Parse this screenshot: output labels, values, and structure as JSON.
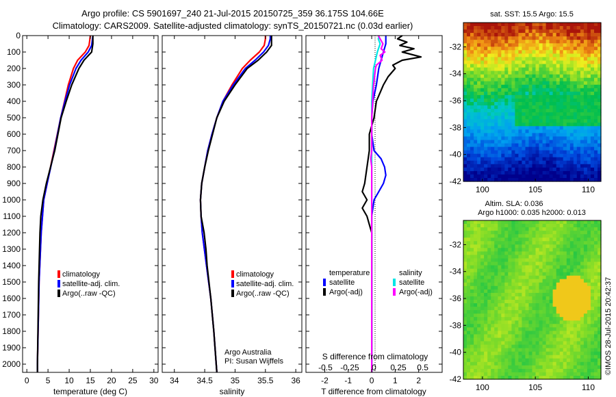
{
  "header": {
    "line1": "Argo profile: CS 5901697_240 21-Jul-2015 20150725_359 36.175S 104.66E",
    "line2": "Climatology: CARS2009. Satellite-adjusted climatology: synTS_20150721.nc (0.03d earlier)"
  },
  "colors": {
    "climatology": "#ff0000",
    "satellite_adj": "#0000ff",
    "argo": "#000000",
    "satellite_salinity": "#00e5e5",
    "argo_salinity": "#ff00ff"
  },
  "chart_data": [
    {
      "type": "line",
      "id": "temperature",
      "xlabel": "temperature (deg C)",
      "xlim": [
        -1,
        31
      ],
      "ylim": [
        2050,
        0
      ],
      "xticks": [
        0,
        5,
        10,
        15,
        20,
        25,
        30
      ],
      "yticks": [
        0,
        100,
        200,
        300,
        400,
        500,
        600,
        700,
        800,
        900,
        1000,
        1100,
        1200,
        1300,
        1400,
        1500,
        1600,
        1700,
        1800,
        1900,
        2000
      ],
      "legend": [
        "climatology",
        "satellite-adj. clim.",
        "Argo(..raw -QC)"
      ],
      "legend_position": "lower-middle",
      "series": [
        {
          "name": "climatology",
          "color": "#ff0000",
          "depth": [
            0,
            20,
            60,
            100,
            150,
            200,
            300,
            400,
            500,
            700,
            900,
            1000,
            1200,
            1500,
            2000,
            2050
          ],
          "values": [
            15.0,
            14.9,
            14.7,
            13.8,
            12.0,
            11.0,
            9.8,
            8.9,
            8.0,
            6.4,
            4.8,
            4.0,
            3.4,
            2.9,
            2.5,
            2.5
          ]
        },
        {
          "name": "satellite-adj. clim.",
          "color": "#0000ff",
          "depth": [
            0,
            20,
            60,
            100,
            150,
            200,
            300,
            400,
            500,
            700,
            900,
            1000,
            1200,
            1500,
            2000,
            2050
          ],
          "values": [
            15.6,
            15.5,
            15.3,
            14.5,
            12.8,
            11.6,
            10.1,
            9.0,
            8.0,
            6.5,
            4.8,
            4.0,
            3.4,
            2.9,
            2.5,
            2.5
          ]
        },
        {
          "name": "Argo(..raw -QC)",
          "color": "#000000",
          "depth": [
            0,
            20,
            50,
            100,
            150,
            200,
            300,
            400,
            500,
            700,
            900,
            950,
            1000,
            1100,
            1200,
            1500,
            2000,
            2050
          ],
          "values": [
            15.6,
            15.6,
            15.6,
            15.3,
            13.5,
            12.3,
            10.6,
            9.3,
            8.1,
            6.6,
            4.6,
            4.2,
            3.8,
            3.3,
            3.1,
            2.8,
            2.5,
            2.5
          ]
        }
      ]
    },
    {
      "type": "line",
      "id": "salinity",
      "xlabel": "salinity",
      "xlim": [
        33.8,
        36.1
      ],
      "ylim": [
        2050,
        0
      ],
      "xticks": [
        34,
        34.5,
        35,
        35.5,
        36
      ],
      "legend": [
        "climatology",
        "satellite-adj. clim.",
        "Argo(..raw -QC)"
      ],
      "legend_position": "lower-middle",
      "annotation": [
        "Argo Australia",
        "PI: Susan Wijffels"
      ],
      "series": [
        {
          "name": "climatology",
          "color": "#ff0000",
          "depth": [
            0,
            20,
            60,
            100,
            150,
            200,
            300,
            400,
            500,
            600,
            700,
            800,
            900,
            1000,
            1100,
            1200,
            1400,
            1600,
            1800,
            2000,
            2050
          ],
          "values": [
            35.5,
            35.5,
            35.48,
            35.4,
            35.25,
            35.12,
            34.95,
            34.8,
            34.7,
            34.62,
            34.55,
            34.5,
            34.45,
            34.43,
            34.44,
            34.46,
            34.53,
            34.6,
            34.65,
            34.69,
            34.7
          ]
        },
        {
          "name": "satellite-adj. clim.",
          "color": "#0000ff",
          "depth": [
            0,
            20,
            60,
            100,
            150,
            200,
            300,
            400,
            500,
            600,
            700,
            800,
            900,
            1000,
            1100,
            1200,
            1400,
            1600,
            1800,
            2000,
            2050
          ],
          "values": [
            35.58,
            35.58,
            35.55,
            35.47,
            35.33,
            35.17,
            34.97,
            34.8,
            34.7,
            34.62,
            34.55,
            34.5,
            34.45,
            34.43,
            34.44,
            34.46,
            34.53,
            34.6,
            34.65,
            34.69,
            34.7
          ]
        },
        {
          "name": "Argo(..raw -QC)",
          "color": "#000000",
          "depth": [
            0,
            20,
            60,
            100,
            150,
            200,
            300,
            400,
            500,
            600,
            700,
            800,
            900,
            1000,
            1100,
            1200,
            1300,
            1400,
            1600,
            1800,
            2000,
            2050
          ],
          "values": [
            35.6,
            35.6,
            35.6,
            35.52,
            35.38,
            35.2,
            35.0,
            34.82,
            34.7,
            34.63,
            34.56,
            34.5,
            34.45,
            34.43,
            34.44,
            34.49,
            34.52,
            34.54,
            34.6,
            34.65,
            34.69,
            34.7
          ]
        }
      ]
    },
    {
      "type": "line",
      "id": "difference",
      "xlabel": "T difference from climatology",
      "top_axis_label": "S difference from climatology",
      "xlim": [
        -2.8,
        3.0
      ],
      "ylim": [
        2050,
        0
      ],
      "xticks": [
        -2,
        -1,
        0,
        1,
        2
      ],
      "top_ticks": [
        -0.5,
        -0.25,
        0,
        0.25,
        0.5
      ],
      "legend_temperature_title": "temperature",
      "legend_salinity_title": "salinity",
      "legend_temperature": [
        "satellite",
        "Argo(-adj)"
      ],
      "legend_salinity": [
        "satellite",
        "Argo(-adj)"
      ],
      "legend_position": "lower-middle",
      "series": [
        {
          "name": "T satellite",
          "color": "#0000ff",
          "depth": [
            0,
            50,
            100,
            150,
            200,
            300,
            400,
            500,
            600,
            700,
            750,
            800,
            850,
            900,
            950,
            1000,
            1100,
            1200,
            1400,
            1600,
            2000,
            2050
          ],
          "values": [
            0.6,
            0.6,
            0.5,
            0.4,
            0.3,
            0.2,
            0.05,
            0.0,
            0.0,
            0.1,
            0.4,
            0.55,
            0.6,
            0.5,
            0.3,
            0.1,
            0.0,
            0.0,
            0.0,
            0.0,
            0.0,
            0.0
          ]
        },
        {
          "name": "T Argo(-adj)",
          "color": "#000000",
          "depth": [
            0,
            20,
            40,
            60,
            80,
            100,
            130,
            150,
            180,
            200,
            250,
            300,
            400,
            500,
            600,
            700,
            800,
            900,
            950,
            1000,
            1050,
            1100,
            1150,
            1200,
            1400,
            1600,
            2000,
            2050
          ],
          "values": [
            1.3,
            1.1,
            1.5,
            1.2,
            1.8,
            1.3,
            2.1,
            1.3,
            0.9,
            1.0,
            0.7,
            0.5,
            0.2,
            0.1,
            -0.1,
            -0.1,
            -0.2,
            -0.3,
            -0.4,
            -0.2,
            -0.4,
            -0.2,
            -0.1,
            0.0,
            0.0,
            0.0,
            0.0,
            0.0
          ]
        },
        {
          "name": "S satellite",
          "color": "#00e5e5",
          "depth": [
            0,
            20,
            50,
            100,
            150,
            200,
            300,
            400,
            500,
            700,
            1000,
            1500,
            2000,
            2050
          ],
          "values": [
            0.08,
            0.07,
            0.09,
            0.06,
            0.04,
            0.02,
            0.01,
            0.0,
            0.0,
            0.0,
            0.0,
            0.0,
            0.0,
            0.0
          ]
        },
        {
          "name": "S Argo(-adj)",
          "color": "#ff00ff",
          "depth": [
            0,
            20,
            50,
            80,
            100,
            120,
            150,
            180,
            200,
            250,
            300,
            400,
            500,
            700,
            750,
            800,
            1000,
            1200,
            1500,
            2000,
            2050
          ],
          "values": [
            0.07,
            0.09,
            0.12,
            0.1,
            0.14,
            0.09,
            0.11,
            0.05,
            0.04,
            0.03,
            0.02,
            0.01,
            0.0,
            0.0,
            -0.01,
            0.0,
            0.0,
            0.0,
            0.0,
            0.0,
            0.0
          ]
        }
      ]
    },
    {
      "type": "heatmap",
      "id": "sst_map",
      "title": "sat. SST: 15.5 Argo: 15.5",
      "xticks": [
        100,
        105,
        110
      ],
      "yticks": [
        -32,
        -34,
        -36,
        -38,
        -40,
        -42
      ],
      "xlim": [
        98.2,
        111.2
      ],
      "ylim": [
        -42,
        -30.2
      ]
    },
    {
      "type": "heatmap",
      "id": "sla_map",
      "title_line1": "Altim. SLA: 0.036",
      "title_line2": "Argo h1000: 0.035 h2000: 0.013",
      "xticks": [
        100,
        105,
        110
      ],
      "yticks": [
        -32,
        -34,
        -36,
        -38,
        -40,
        -42
      ],
      "xlim": [
        98.2,
        111.2
      ],
      "ylim": [
        -42,
        -30.2
      ]
    }
  ],
  "footer": {
    "credit": "©IMOS 28-Jul-2015 20:42:37"
  }
}
